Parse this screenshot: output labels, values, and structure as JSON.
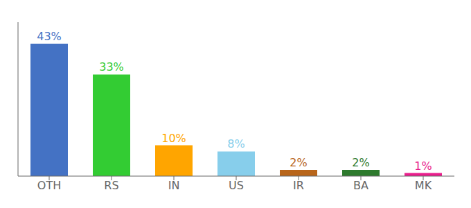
{
  "chart_data": {
    "type": "bar",
    "categories": [
      "OTH",
      "RS",
      "IN",
      "US",
      "IR",
      "BA",
      "MK"
    ],
    "values": [
      43,
      33,
      10,
      8,
      2,
      2,
      1
    ],
    "value_labels": [
      "43%",
      "33%",
      "10%",
      "8%",
      "2%",
      "2%",
      "1%"
    ],
    "colors": [
      "#4472C4",
      "#33CC33",
      "#FFA500",
      "#87CEEB",
      "#B8651A",
      "#2D7A2D",
      "#E91E8C"
    ],
    "ylim": [
      0,
      50
    ],
    "data_labels": true,
    "tick_labels": "x",
    "grid": false
  }
}
